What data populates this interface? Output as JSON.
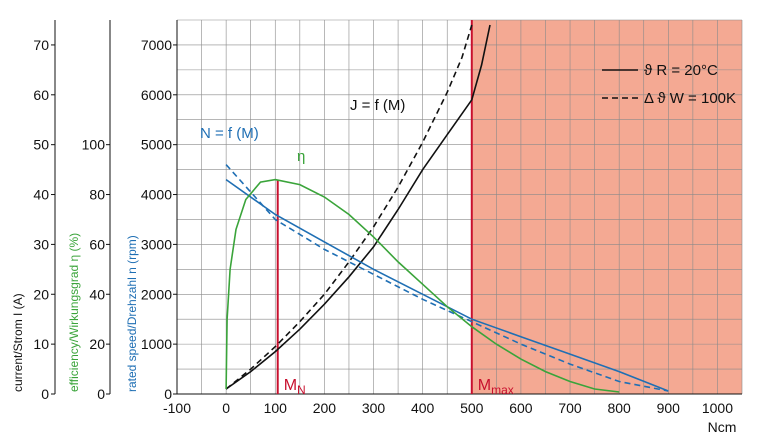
{
  "chart_data": {
    "type": "line",
    "xlabel": "Ncm",
    "xlim": [
      -100,
      1050
    ],
    "x_ticks": [
      -100,
      0,
      100,
      200,
      300,
      400,
      500,
      600,
      700,
      800,
      900,
      1000
    ],
    "axes": {
      "speed": {
        "label": "rated speed/Drehzahl n (rpm)",
        "lim": [
          0,
          7500
        ],
        "ticks": [
          0,
          1000,
          2000,
          3000,
          4000,
          5000,
          6000,
          7000
        ],
        "color": "#1f6fb4"
      },
      "efficiency": {
        "label": "efficiency/Wirkungsgrad η (%)",
        "lim": [
          0,
          150
        ],
        "ticks": [
          0,
          20,
          40,
          60,
          80,
          100
        ],
        "color": "#3aa43a"
      },
      "current": {
        "label": "current/Strom I (A)",
        "lim": [
          0,
          75
        ],
        "ticks": [
          0,
          10,
          20,
          30,
          40,
          50,
          60,
          70
        ],
        "color": "#111111"
      }
    },
    "grid": true,
    "shaded_region": {
      "x_from": 500,
      "x_to": 1050,
      "color": "#f4a993"
    },
    "markers": [
      {
        "x": 105,
        "label": "M",
        "sub": "N",
        "color": "#c8102e",
        "y_top_speed": 4300
      },
      {
        "x": 500,
        "label": "M",
        "sub": "max",
        "color": "#c8102e",
        "y_top_speed": 7500
      }
    ],
    "curve_labels": {
      "current": "J = f (M)",
      "speed": "N = f (M)",
      "efficiency": "η"
    },
    "legend": {
      "position": "top-right",
      "entries": [
        {
          "style": "solid",
          "label": "ϑ R = 20°C"
        },
        {
          "style": "dashed",
          "label": "Δ ϑ W = 100K"
        }
      ]
    },
    "series": [
      {
        "name": "current",
        "axis": "speed",
        "color": "#111111",
        "style": "solid",
        "x": [
          0,
          50,
          100,
          150,
          200,
          250,
          300,
          350,
          400,
          450,
          500,
          520,
          537
        ],
        "y": [
          100,
          450,
          850,
          1300,
          1800,
          2350,
          2950,
          3700,
          4500,
          5200,
          5900,
          6600,
          7400
        ]
      },
      {
        "name": "current",
        "axis": "speed",
        "color": "#111111",
        "style": "dashed",
        "x": [
          0,
          50,
          100,
          150,
          200,
          250,
          300,
          350,
          400,
          450,
          480,
          500
        ],
        "y": [
          100,
          500,
          950,
          1450,
          2000,
          2650,
          3350,
          4150,
          5050,
          6050,
          6750,
          7400
        ]
      },
      {
        "name": "speed",
        "axis": "speed",
        "color": "#1f6fb4",
        "style": "solid",
        "x": [
          0,
          100,
          200,
          300,
          400,
          500,
          600,
          700,
          800,
          900
        ],
        "y": [
          4300,
          3600,
          3050,
          2500,
          2000,
          1500,
          1150,
          800,
          450,
          60
        ]
      },
      {
        "name": "speed",
        "axis": "speed",
        "color": "#1f6fb4",
        "style": "dashed",
        "x": [
          0,
          100,
          200,
          300,
          400,
          500,
          600,
          700,
          800,
          900
        ],
        "y": [
          4600,
          3500,
          2900,
          2400,
          1900,
          1450,
          1000,
          600,
          250,
          60
        ]
      },
      {
        "name": "efficiency",
        "axis": "speed",
        "color": "#3aa43a",
        "style": "solid",
        "x": [
          0,
          2,
          8,
          20,
          40,
          70,
          100,
          150,
          200,
          250,
          300,
          350,
          400,
          450,
          500,
          550,
          600,
          650,
          700,
          750,
          800
        ],
        "y": [
          100,
          1500,
          2500,
          3300,
          3900,
          4250,
          4300,
          4200,
          3950,
          3600,
          3150,
          2650,
          2200,
          1750,
          1350,
          1000,
          700,
          450,
          250,
          100,
          40
        ]
      }
    ]
  }
}
